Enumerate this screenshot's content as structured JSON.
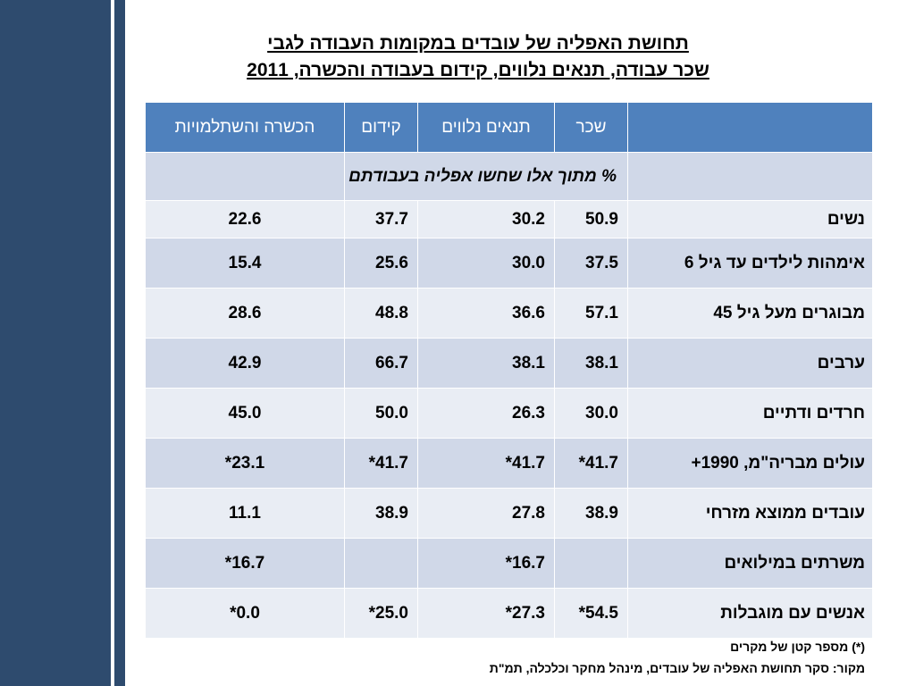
{
  "title": {
    "line1": "תחושת האפליה של עובדים במקומות העבודה לגבי",
    "line2": "שכר עבודה, תנאים נלווים, קידום בעבודה והכשרה, 2011"
  },
  "table": {
    "headers": [
      "",
      "שכר",
      "תנאים נלווים",
      "קידום",
      "הכשרה והשתלמויות"
    ],
    "note": "% מתוך אלו שחשו אפליה בעבודתם",
    "rows": [
      {
        "label": "נשים",
        "values": [
          "50.9",
          "30.2",
          "37.7",
          "22.6"
        ]
      },
      {
        "label": "אימהות לילדים עד גיל 6",
        "values": [
          "37.5",
          "30.0",
          "25.6",
          "15.4"
        ]
      },
      {
        "label": "מבוגרים מעל גיל 45",
        "values": [
          "57.1",
          "36.6",
          "48.8",
          "28.6"
        ]
      },
      {
        "label": "ערבים",
        "values": [
          "38.1",
          "38.1",
          "66.7",
          "42.9"
        ]
      },
      {
        "label": "חרדים ודתיים",
        "values": [
          "30.0",
          "26.3",
          "50.0",
          "45.0"
        ]
      },
      {
        "label": "עולים מבריה\"מ, 1990+",
        "values": [
          "41.7*",
          "41.7*",
          "41.7*",
          "23.1*"
        ]
      },
      {
        "label": "עובדים ממוצא מזרחי",
        "values": [
          "38.9",
          "27.8",
          "38.9",
          "11.1"
        ]
      },
      {
        "label": "משרתים במילואים",
        "values": [
          "",
          "16.7*",
          "",
          "16.7*"
        ]
      },
      {
        "label": "אנשים עם מוגבלות",
        "values": [
          "54.5*",
          "27.3*",
          "25.0*",
          "0.0*"
        ]
      }
    ]
  },
  "footnote": "(*) מספר קטן של מקרים",
  "source": "מקור: סקר תחושת האפליה של עובדים, מינהל מחקר וכלכלה, תמ\"ת"
}
